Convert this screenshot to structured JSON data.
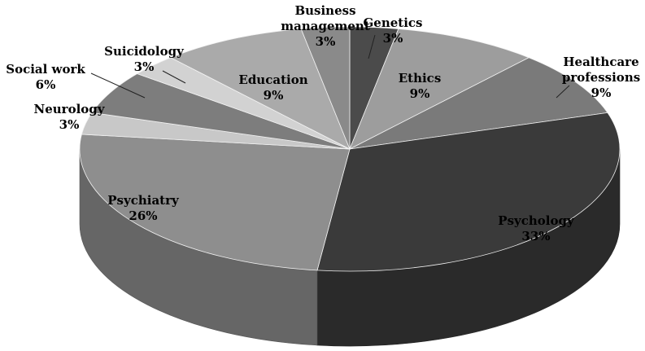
{
  "chart_data": {
    "type": "pie",
    "title": "",
    "labels": [
      [
        "Genetics"
      ],
      [
        "Ethics"
      ],
      [
        "Healthcare",
        "professions"
      ],
      [
        "Psychology"
      ],
      [
        "Psychiatry"
      ],
      [
        "Neurology"
      ],
      [
        "Social work"
      ],
      [
        "Suicidology"
      ],
      [
        "Education"
      ],
      [
        "Business",
        "management"
      ]
    ],
    "values": [
      3,
      9,
      9,
      33,
      26,
      3,
      6,
      3,
      9,
      3
    ],
    "value_labels": [
      "3%",
      "9%",
      "9%",
      "33%",
      "26%",
      "3%",
      "6%",
      "3%",
      "9%",
      "3%"
    ],
    "colors": [
      "#4b4b4b",
      "#9d9d9d",
      "#7a7a7a",
      "#3a3a3a",
      "#8e8e8e",
      "#c8c8c8",
      "#7d7d7d",
      "#d2d2d2",
      "#aaaaaa",
      "#8a8a8a"
    ],
    "style": "3d-pie",
    "legend": "none"
  }
}
